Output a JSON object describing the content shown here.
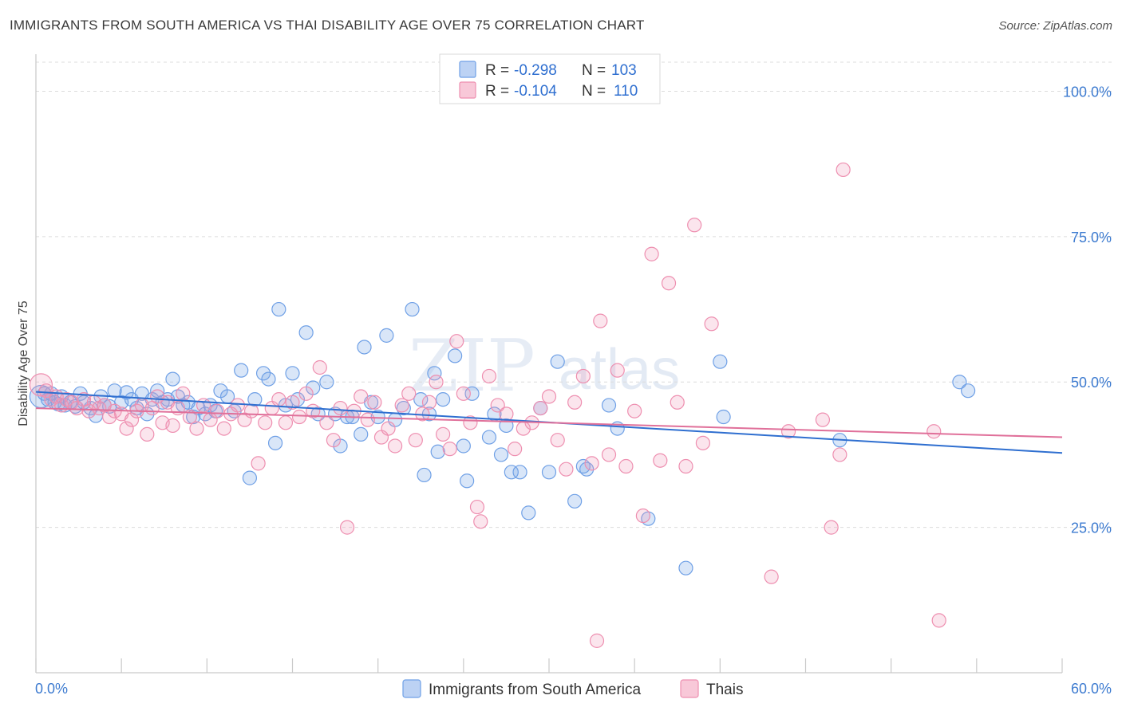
{
  "title": "IMMIGRANTS FROM SOUTH AMERICA VS THAI DISABILITY AGE OVER 75 CORRELATION CHART",
  "source": "Source: ZipAtlas.com",
  "watermark": {
    "zip": "ZIP",
    "atlas": "atlas"
  },
  "legend": {
    "rows": [
      {
        "r_label": "R =",
        "r_value": "-0.298",
        "n_label": "N =",
        "n_value": "103",
        "color": "#6fa0e6"
      },
      {
        "r_label": "R =",
        "r_value": "-0.104",
        "n_label": "N =",
        "n_value": "110",
        "color": "#ee8fb0"
      }
    ]
  },
  "bottom_legend": [
    "Immigrants from South America",
    "Thais"
  ],
  "chart_data": {
    "type": "scatter",
    "xlabel": "",
    "ylabel": "Disability Age Over 75",
    "xlim": [
      0,
      60
    ],
    "ylim": [
      0,
      105
    ],
    "x_tick_labels": [
      "0.0%",
      "60.0%"
    ],
    "y_ticks": [
      25,
      50,
      75,
      100
    ],
    "y_tick_labels": [
      "25.0%",
      "50.0%",
      "75.0%",
      "100.0%"
    ],
    "grid": true,
    "legend_position": "top-center",
    "series": [
      {
        "name": "Immigrants from South America",
        "color": "#6fa0e6",
        "trend": {
          "x": [
            0,
            60
          ],
          "y": [
            48.3,
            37.8
          ]
        },
        "points": [
          [
            0.3,
            47.5
          ],
          [
            0.5,
            48.0
          ],
          [
            0.7,
            47.0
          ],
          [
            0.9,
            48.0
          ],
          [
            1.1,
            46.5
          ],
          [
            1.3,
            46.2
          ],
          [
            1.5,
            47.5
          ],
          [
            1.7,
            46.0
          ],
          [
            2.0,
            46.5
          ],
          [
            2.3,
            45.8
          ],
          [
            2.6,
            48.0
          ],
          [
            2.8,
            46.5
          ],
          [
            3.2,
            45.5
          ],
          [
            3.5,
            44.2
          ],
          [
            3.8,
            47.5
          ],
          [
            4.0,
            46.0
          ],
          [
            4.3,
            45.8
          ],
          [
            4.6,
            48.5
          ],
          [
            5.0,
            46.5
          ],
          [
            5.3,
            48.2
          ],
          [
            5.6,
            47.0
          ],
          [
            5.9,
            45.5
          ],
          [
            6.2,
            48.0
          ],
          [
            6.5,
            44.5
          ],
          [
            6.8,
            47.0
          ],
          [
            7.1,
            48.5
          ],
          [
            7.4,
            46.5
          ],
          [
            7.7,
            47.0
          ],
          [
            8.0,
            50.5
          ],
          [
            8.3,
            47.5
          ],
          [
            8.6,
            46.0
          ],
          [
            8.9,
            46.5
          ],
          [
            9.2,
            44.0
          ],
          [
            9.5,
            45.5
          ],
          [
            9.9,
            44.5
          ],
          [
            10.2,
            46.0
          ],
          [
            10.5,
            45.0
          ],
          [
            10.8,
            48.5
          ],
          [
            11.2,
            47.5
          ],
          [
            11.6,
            45.0
          ],
          [
            12.0,
            52.0
          ],
          [
            12.5,
            33.5
          ],
          [
            12.8,
            47.0
          ],
          [
            13.3,
            51.5
          ],
          [
            13.6,
            50.5
          ],
          [
            14.0,
            39.5
          ],
          [
            14.2,
            62.5
          ],
          [
            14.6,
            46.0
          ],
          [
            15.0,
            51.5
          ],
          [
            15.3,
            47.0
          ],
          [
            15.8,
            58.5
          ],
          [
            16.2,
            49.0
          ],
          [
            16.5,
            44.5
          ],
          [
            17.0,
            50.0
          ],
          [
            17.5,
            44.5
          ],
          [
            17.8,
            39.0
          ],
          [
            18.2,
            44.0
          ],
          [
            18.5,
            44.0
          ],
          [
            19.0,
            41.0
          ],
          [
            19.2,
            56.0
          ],
          [
            19.6,
            46.5
          ],
          [
            20.0,
            44.0
          ],
          [
            20.5,
            58.0
          ],
          [
            21.0,
            43.5
          ],
          [
            21.5,
            45.5
          ],
          [
            22.0,
            62.5
          ],
          [
            22.5,
            47.0
          ],
          [
            22.7,
            34.0
          ],
          [
            23.0,
            44.5
          ],
          [
            23.3,
            51.5
          ],
          [
            23.5,
            38.0
          ],
          [
            23.8,
            47.0
          ],
          [
            24.5,
            54.5
          ],
          [
            25.0,
            39.0
          ],
          [
            25.2,
            33.0
          ],
          [
            25.5,
            48.0
          ],
          [
            26.5,
            40.5
          ],
          [
            26.8,
            44.5
          ],
          [
            27.2,
            37.5
          ],
          [
            27.5,
            42.5
          ],
          [
            27.8,
            34.5
          ],
          [
            28.3,
            34.5
          ],
          [
            28.8,
            27.5
          ],
          [
            29.5,
            45.5
          ],
          [
            30.0,
            34.5
          ],
          [
            30.5,
            53.5
          ],
          [
            31.5,
            29.5
          ],
          [
            32.0,
            35.5
          ],
          [
            32.2,
            35.0
          ],
          [
            33.5,
            46.0
          ],
          [
            34.0,
            42.0
          ],
          [
            35.8,
            26.5
          ],
          [
            38.0,
            18.0
          ],
          [
            40.0,
            53.5
          ],
          [
            40.2,
            44.0
          ],
          [
            47.0,
            40.0
          ],
          [
            54.0,
            50.0
          ],
          [
            54.5,
            48.5
          ]
        ]
      },
      {
        "name": "Thais",
        "color": "#ee8fb0",
        "trend": {
          "x": [
            0,
            60
          ],
          "y": [
            45.5,
            40.5
          ]
        },
        "points": [
          [
            0.3,
            49.5
          ],
          [
            0.6,
            48.5
          ],
          [
            0.9,
            47.0
          ],
          [
            1.2,
            47.5
          ],
          [
            1.5,
            46.0
          ],
          [
            1.8,
            47.0
          ],
          [
            2.1,
            46.5
          ],
          [
            2.4,
            45.5
          ],
          [
            2.8,
            47.0
          ],
          [
            3.1,
            45.0
          ],
          [
            3.4,
            46.5
          ],
          [
            3.7,
            45.5
          ],
          [
            4.0,
            46.0
          ],
          [
            4.3,
            44.0
          ],
          [
            4.6,
            45.0
          ],
          [
            5.0,
            44.5
          ],
          [
            5.3,
            42.0
          ],
          [
            5.6,
            43.5
          ],
          [
            5.9,
            45.0
          ],
          [
            6.2,
            46.0
          ],
          [
            6.5,
            41.0
          ],
          [
            6.8,
            45.5
          ],
          [
            7.1,
            47.5
          ],
          [
            7.4,
            43.0
          ],
          [
            7.7,
            46.5
          ],
          [
            8.0,
            42.5
          ],
          [
            8.3,
            45.5
          ],
          [
            8.6,
            48.0
          ],
          [
            9.0,
            44.0
          ],
          [
            9.4,
            42.0
          ],
          [
            9.8,
            46.0
          ],
          [
            10.2,
            43.5
          ],
          [
            10.6,
            45.0
          ],
          [
            11.0,
            42.0
          ],
          [
            11.4,
            44.5
          ],
          [
            11.8,
            46.0
          ],
          [
            12.2,
            43.5
          ],
          [
            12.6,
            45.0
          ],
          [
            13.0,
            36.0
          ],
          [
            13.4,
            43.0
          ],
          [
            13.8,
            45.5
          ],
          [
            14.2,
            47.0
          ],
          [
            14.6,
            43.0
          ],
          [
            15.0,
            46.5
          ],
          [
            15.4,
            44.0
          ],
          [
            15.8,
            48.0
          ],
          [
            16.2,
            45.0
          ],
          [
            16.6,
            52.5
          ],
          [
            17.0,
            43.0
          ],
          [
            17.4,
            40.0
          ],
          [
            17.8,
            45.5
          ],
          [
            18.2,
            25.0
          ],
          [
            18.6,
            45.0
          ],
          [
            19.0,
            47.5
          ],
          [
            19.4,
            43.5
          ],
          [
            19.8,
            46.5
          ],
          [
            20.2,
            40.5
          ],
          [
            20.6,
            42.0
          ],
          [
            21.0,
            39.0
          ],
          [
            21.4,
            46.0
          ],
          [
            21.8,
            48.0
          ],
          [
            22.2,
            40.0
          ],
          [
            22.6,
            44.5
          ],
          [
            23.0,
            46.5
          ],
          [
            23.4,
            50.0
          ],
          [
            23.8,
            41.0
          ],
          [
            24.2,
            38.5
          ],
          [
            24.6,
            57.0
          ],
          [
            25.0,
            48.0
          ],
          [
            25.4,
            43.0
          ],
          [
            25.8,
            28.5
          ],
          [
            26.0,
            26.0
          ],
          [
            26.5,
            51.0
          ],
          [
            27.0,
            46.0
          ],
          [
            27.5,
            44.5
          ],
          [
            28.0,
            38.5
          ],
          [
            28.5,
            42.0
          ],
          [
            29.0,
            43.0
          ],
          [
            29.5,
            45.5
          ],
          [
            30.0,
            47.5
          ],
          [
            30.5,
            40.0
          ],
          [
            31.0,
            35.0
          ],
          [
            31.5,
            46.5
          ],
          [
            32.0,
            51.0
          ],
          [
            32.5,
            36.0
          ],
          [
            33.0,
            60.5
          ],
          [
            33.5,
            37.5
          ],
          [
            34.0,
            52.0
          ],
          [
            34.5,
            35.5
          ],
          [
            35.0,
            45.0
          ],
          [
            35.5,
            27.0
          ],
          [
            36.0,
            72.0
          ],
          [
            36.5,
            36.5
          ],
          [
            37.0,
            67.0
          ],
          [
            37.5,
            46.5
          ],
          [
            38.0,
            35.5
          ],
          [
            38.5,
            77.0
          ],
          [
            39.0,
            39.5
          ],
          [
            39.5,
            60.0
          ],
          [
            32.8,
            5.5
          ],
          [
            43.0,
            16.5
          ],
          [
            44.0,
            41.5
          ],
          [
            46.0,
            43.5
          ],
          [
            47.0,
            37.5
          ],
          [
            47.2,
            86.5
          ],
          [
            46.5,
            25.0
          ],
          [
            52.5,
            41.5
          ],
          [
            52.8,
            9.0
          ]
        ]
      }
    ]
  }
}
